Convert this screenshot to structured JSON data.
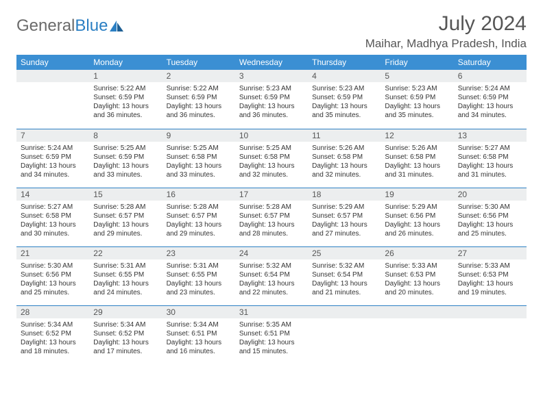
{
  "logo": {
    "text1": "General",
    "text2": "Blue"
  },
  "title": "July 2024",
  "subtitle": "Maihar, Madhya Pradesh, India",
  "header_bg": "#3b8fd3",
  "header_fg": "#ffffff",
  "daynum_bg": "#eceeef",
  "week_border": "#2b7fc3",
  "day_names": [
    "Sunday",
    "Monday",
    "Tuesday",
    "Wednesday",
    "Thursday",
    "Friday",
    "Saturday"
  ],
  "weeks": [
    [
      null,
      {
        "n": "1",
        "sr": "Sunrise: 5:22 AM",
        "ss": "Sunset: 6:59 PM",
        "dl": "Daylight: 13 hours and 36 minutes."
      },
      {
        "n": "2",
        "sr": "Sunrise: 5:22 AM",
        "ss": "Sunset: 6:59 PM",
        "dl": "Daylight: 13 hours and 36 minutes."
      },
      {
        "n": "3",
        "sr": "Sunrise: 5:23 AM",
        "ss": "Sunset: 6:59 PM",
        "dl": "Daylight: 13 hours and 36 minutes."
      },
      {
        "n": "4",
        "sr": "Sunrise: 5:23 AM",
        "ss": "Sunset: 6:59 PM",
        "dl": "Daylight: 13 hours and 35 minutes."
      },
      {
        "n": "5",
        "sr": "Sunrise: 5:23 AM",
        "ss": "Sunset: 6:59 PM",
        "dl": "Daylight: 13 hours and 35 minutes."
      },
      {
        "n": "6",
        "sr": "Sunrise: 5:24 AM",
        "ss": "Sunset: 6:59 PM",
        "dl": "Daylight: 13 hours and 34 minutes."
      }
    ],
    [
      {
        "n": "7",
        "sr": "Sunrise: 5:24 AM",
        "ss": "Sunset: 6:59 PM",
        "dl": "Daylight: 13 hours and 34 minutes."
      },
      {
        "n": "8",
        "sr": "Sunrise: 5:25 AM",
        "ss": "Sunset: 6:59 PM",
        "dl": "Daylight: 13 hours and 33 minutes."
      },
      {
        "n": "9",
        "sr": "Sunrise: 5:25 AM",
        "ss": "Sunset: 6:58 PM",
        "dl": "Daylight: 13 hours and 33 minutes."
      },
      {
        "n": "10",
        "sr": "Sunrise: 5:25 AM",
        "ss": "Sunset: 6:58 PM",
        "dl": "Daylight: 13 hours and 32 minutes."
      },
      {
        "n": "11",
        "sr": "Sunrise: 5:26 AM",
        "ss": "Sunset: 6:58 PM",
        "dl": "Daylight: 13 hours and 32 minutes."
      },
      {
        "n": "12",
        "sr": "Sunrise: 5:26 AM",
        "ss": "Sunset: 6:58 PM",
        "dl": "Daylight: 13 hours and 31 minutes."
      },
      {
        "n": "13",
        "sr": "Sunrise: 5:27 AM",
        "ss": "Sunset: 6:58 PM",
        "dl": "Daylight: 13 hours and 31 minutes."
      }
    ],
    [
      {
        "n": "14",
        "sr": "Sunrise: 5:27 AM",
        "ss": "Sunset: 6:58 PM",
        "dl": "Daylight: 13 hours and 30 minutes."
      },
      {
        "n": "15",
        "sr": "Sunrise: 5:28 AM",
        "ss": "Sunset: 6:57 PM",
        "dl": "Daylight: 13 hours and 29 minutes."
      },
      {
        "n": "16",
        "sr": "Sunrise: 5:28 AM",
        "ss": "Sunset: 6:57 PM",
        "dl": "Daylight: 13 hours and 29 minutes."
      },
      {
        "n": "17",
        "sr": "Sunrise: 5:28 AM",
        "ss": "Sunset: 6:57 PM",
        "dl": "Daylight: 13 hours and 28 minutes."
      },
      {
        "n": "18",
        "sr": "Sunrise: 5:29 AM",
        "ss": "Sunset: 6:57 PM",
        "dl": "Daylight: 13 hours and 27 minutes."
      },
      {
        "n": "19",
        "sr": "Sunrise: 5:29 AM",
        "ss": "Sunset: 6:56 PM",
        "dl": "Daylight: 13 hours and 26 minutes."
      },
      {
        "n": "20",
        "sr": "Sunrise: 5:30 AM",
        "ss": "Sunset: 6:56 PM",
        "dl": "Daylight: 13 hours and 25 minutes."
      }
    ],
    [
      {
        "n": "21",
        "sr": "Sunrise: 5:30 AM",
        "ss": "Sunset: 6:56 PM",
        "dl": "Daylight: 13 hours and 25 minutes."
      },
      {
        "n": "22",
        "sr": "Sunrise: 5:31 AM",
        "ss": "Sunset: 6:55 PM",
        "dl": "Daylight: 13 hours and 24 minutes."
      },
      {
        "n": "23",
        "sr": "Sunrise: 5:31 AM",
        "ss": "Sunset: 6:55 PM",
        "dl": "Daylight: 13 hours and 23 minutes."
      },
      {
        "n": "24",
        "sr": "Sunrise: 5:32 AM",
        "ss": "Sunset: 6:54 PM",
        "dl": "Daylight: 13 hours and 22 minutes."
      },
      {
        "n": "25",
        "sr": "Sunrise: 5:32 AM",
        "ss": "Sunset: 6:54 PM",
        "dl": "Daylight: 13 hours and 21 minutes."
      },
      {
        "n": "26",
        "sr": "Sunrise: 5:33 AM",
        "ss": "Sunset: 6:53 PM",
        "dl": "Daylight: 13 hours and 20 minutes."
      },
      {
        "n": "27",
        "sr": "Sunrise: 5:33 AM",
        "ss": "Sunset: 6:53 PM",
        "dl": "Daylight: 13 hours and 19 minutes."
      }
    ],
    [
      {
        "n": "28",
        "sr": "Sunrise: 5:34 AM",
        "ss": "Sunset: 6:52 PM",
        "dl": "Daylight: 13 hours and 18 minutes."
      },
      {
        "n": "29",
        "sr": "Sunrise: 5:34 AM",
        "ss": "Sunset: 6:52 PM",
        "dl": "Daylight: 13 hours and 17 minutes."
      },
      {
        "n": "30",
        "sr": "Sunrise: 5:34 AM",
        "ss": "Sunset: 6:51 PM",
        "dl": "Daylight: 13 hours and 16 minutes."
      },
      {
        "n": "31",
        "sr": "Sunrise: 5:35 AM",
        "ss": "Sunset: 6:51 PM",
        "dl": "Daylight: 13 hours and 15 minutes."
      },
      null,
      null,
      null
    ]
  ]
}
